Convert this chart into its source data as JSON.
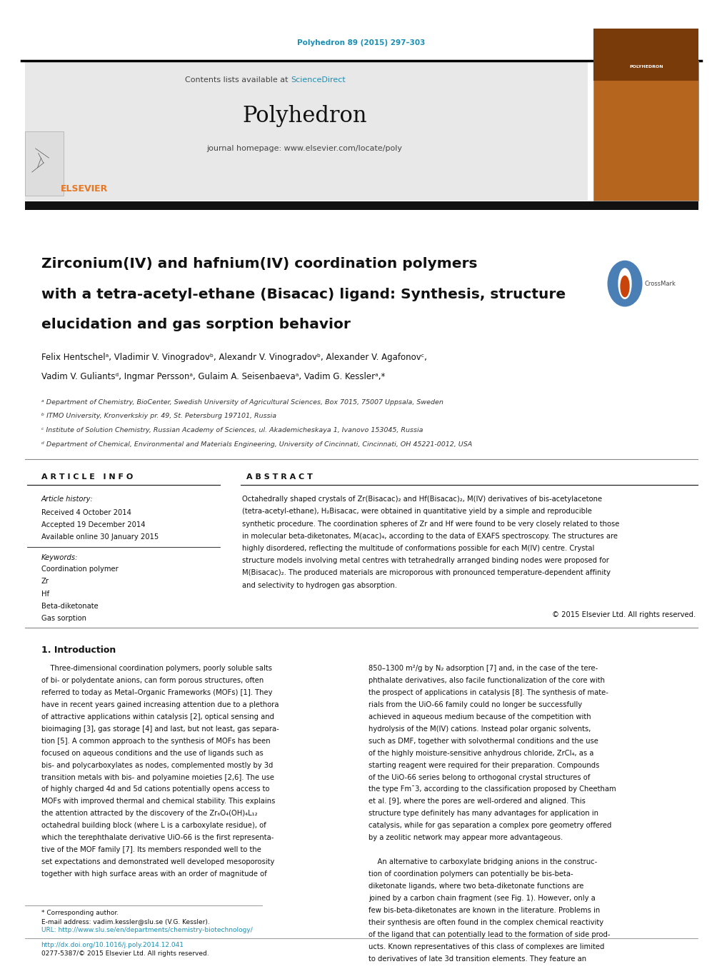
{
  "page_width": 9.92,
  "page_height": 13.23,
  "bg_color": "#ffffff",
  "journal_ref": "Polyhedron 89 (2015) 297–303",
  "journal_ref_color": "#1a8fb5",
  "journal_name": "Polyhedron",
  "header_bg": "#e8e8e8",
  "contents_text": "Contents lists available at",
  "sciencedirect_text": "ScienceDirect",
  "sciencedirect_color": "#1a8fb5",
  "journal_homepage": "journal homepage: www.elsevier.com/locate/poly",
  "elsevier_color": "#e87722",
  "title_line1": "Zirconium(IV) and hafnium(IV) coordination polymers",
  "title_line2": "with a tetra-acetyl-ethane (Bisacac) ligand: Synthesis, structure",
  "title_line3": "elucidation and gas sorption behavior",
  "authors": "Felix Hentschelᵃ, Vladimir V. Vinogradovᵇ, Alexandr V. Vinogradovᵇ, Alexander V. Agafonovᶜ,",
  "authors2": "Vadim V. Guliantsᵈ, Ingmar Perssonᵃ, Gulaim A. Seisenbaevaᵃ, Vadim G. Kesslerᵃ,*",
  "affil1": "ᵃ Department of Chemistry, BioCenter, Swedish University of Agricultural Sciences, Box 7015, 75007 Uppsala, Sweden",
  "affil2": "ᵇ ITMO University, Kronverkskiy pr. 49, St. Petersburg 197101, Russia",
  "affil3": "ᶜ Institute of Solution Chemistry, Russian Academy of Sciences, ul. Akademicheskaya 1, Ivanovo 153045, Russia",
  "affil4": "ᵈ Department of Chemical, Environmental and Materials Engineering, University of Cincinnati, Cincinnati, OH 45221-0012, USA",
  "article_info_header": "A R T I C L E   I N F O",
  "abstract_header": "A B S T R A C T",
  "article_history_header": "Article history:",
  "received": "Received 4 October 2014",
  "accepted": "Accepted 19 December 2014",
  "available": "Available online 30 January 2015",
  "keywords_header": "Keywords:",
  "keyword1": "Coordination polymer",
  "keyword2": "Zr",
  "keyword3": "Hf",
  "keyword4": "Beta-diketonate",
  "keyword5": "Gas sorption",
  "copyright": "© 2015 Elsevier Ltd. All rights reserved.",
  "intro_header": "1. Introduction",
  "footnote_line1": "* Corresponding author.",
  "footnote_line2": "E-mail address: vadim.kessler@slu.se (V.G. Kessler).",
  "footnote_line3": "URL: http://www.slu.se/en/departments/chemistry-biotechnology/",
  "doi_line": "http://dx.doi.org/10.1016/j.poly.2014.12.041",
  "issn_line": "0277-5387/© 2015 Elsevier Ltd. All rights reserved.",
  "top_bar_color": "#000000",
  "thick_bar_color": "#000000",
  "text_color": "#000000",
  "link_color": "#1a8fb5"
}
